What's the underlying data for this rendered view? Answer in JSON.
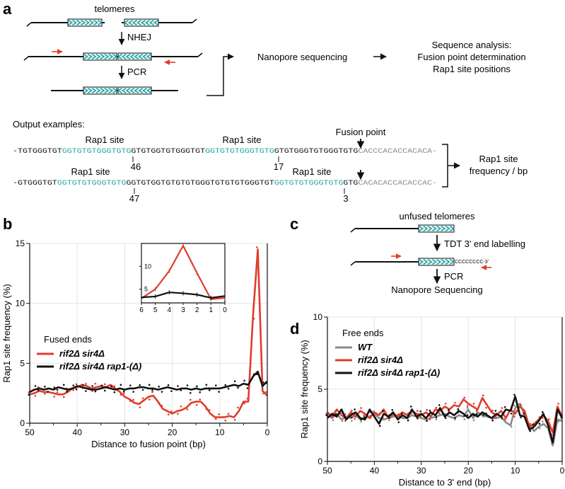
{
  "panel_labels": {
    "a": "a",
    "b": "b",
    "c": "c",
    "d": "d"
  },
  "panel_a": {
    "telomeres": "telomeres",
    "nhej": "NHEJ",
    "pcr": "PCR",
    "nanopore": "Nanopore sequencing",
    "analysis_line1": "Sequence analysis:",
    "analysis_line2": "Fusion point determination",
    "analysis_line3": "Rap1 site positions",
    "output_examples": "Output examples:",
    "rap1_site": "Rap1 site",
    "fusion_point": "Fusion point",
    "freq_line1": "Rap1 site",
    "freq_line2": "frequency / bp",
    "seq1": [
      {
        "t": "-TGTGGGTGT",
        "c": "k"
      },
      {
        "t": "GGTGTGTGGGTGTG",
        "c": "t"
      },
      {
        "t": "GTGTGGTGTGGGTGT",
        "c": "k"
      },
      {
        "t": "GGTGTGTGGGTGTG",
        "c": "t"
      },
      {
        "t": "GTGTGGGTGTGGGTGTG",
        "c": "k"
      },
      {
        "t": "CACCCACACCACACA-",
        "c": "g"
      }
    ],
    "seq2": [
      {
        "t": "-GTGGGTGT",
        "c": "k"
      },
      {
        "t": "GGTGTGTGGGTGTG",
        "c": "t"
      },
      {
        "t": "GGTGTGGTGTGTGTGGGTGTGTGTGGGTGT",
        "c": "k"
      },
      {
        "t": "GGTGTGTGGGTGTG",
        "c": "t"
      },
      {
        "t": "GTG",
        "c": "k"
      },
      {
        "t": "CACACACCACACCAC-",
        "c": "g"
      }
    ],
    "num_46": "46",
    "num_17": "17",
    "num_47": "47",
    "num_3": "3"
  },
  "panel_c": {
    "unfused": "unfused telomeres",
    "tdt": "TDT 3' end labelling",
    "cccc": "CCCCCCCC-3'",
    "pcr": "PCR",
    "nanopore": "Nanopore Sequencing"
  },
  "colors": {
    "teal": "#21a3a3",
    "red": "#e03c2c",
    "gray": "#8a8a8a",
    "black": "#111111"
  },
  "chart_data": [
    {
      "panel": "b",
      "type": "line",
      "xlabel": "Distance to fusion point  (bp)",
      "ylabel": "Rap1 site frequency (%)",
      "xlim": [
        50,
        0
      ],
      "ylim": [
        0,
        15
      ],
      "xticks": [
        50,
        40,
        30,
        20,
        10,
        0
      ],
      "yticks": [
        0,
        5,
        10,
        15
      ],
      "legend_title": "Fused ends",
      "series": [
        {
          "name": "rif2Δ sir4Δ",
          "color": "#e03c2c",
          "values": [
            2.4,
            2.5,
            2.7,
            2.6,
            2.6,
            2.5,
            2.4,
            2.4,
            2.6,
            2.9,
            3.0,
            3.2,
            3.1,
            2.9,
            3.0,
            3.1,
            3.0,
            3.2,
            2.9,
            2.6,
            2.2,
            2.0,
            1.7,
            1.6,
            1.9,
            2.2,
            2.3,
            1.8,
            1.2,
            1.0,
            0.8,
            1.0,
            1.1,
            1.3,
            1.7,
            1.8,
            1.8,
            1.4,
            0.8,
            0.5,
            0.5,
            0.5,
            0.6,
            0.5,
            1.0,
            1.8,
            1.8,
            9.0,
            14.5,
            2.7,
            2.3
          ]
        },
        {
          "name": "rif2Δ sir4Δ rap1-(Δ)",
          "color": "#111111",
          "values": [
            2.6,
            2.8,
            2.9,
            2.8,
            2.9,
            2.8,
            3.0,
            2.9,
            2.8,
            2.9,
            3.1,
            3.0,
            2.9,
            2.8,
            2.8,
            2.9,
            3.0,
            2.9,
            2.8,
            2.9,
            2.8,
            2.9,
            2.9,
            3.0,
            3.0,
            2.9,
            2.9,
            2.8,
            2.9,
            3.0,
            2.9,
            2.8,
            2.9,
            2.9,
            2.8,
            2.9,
            2.8,
            2.9,
            2.9,
            2.9,
            2.9,
            3.0,
            3.1,
            3.2,
            3.1,
            3.3,
            3.2,
            3.9,
            4.3,
            3.1,
            3.5
          ]
        }
      ],
      "inset": {
        "xlim": [
          6,
          0
        ],
        "ylim": [
          2,
          15
        ],
        "xticks": [
          6,
          5,
          4,
          3,
          2,
          1,
          0
        ],
        "yticks": [
          5,
          10
        ],
        "series": [
          {
            "name": "rif2Δ sir4Δ",
            "values": [
              3.0,
              5.0,
              9.0,
              14.5,
              8.5,
              2.8,
              3.1
            ]
          },
          {
            "name": "rif2Δ sir4Δ rap1-(Δ)",
            "values": [
              3.2,
              3.4,
              4.3,
              4.1,
              3.8,
              3.1,
              3.5
            ]
          }
        ]
      }
    },
    {
      "panel": "d",
      "type": "line",
      "xlabel": "Distance to 3' end (bp)",
      "ylabel": "Rap1 site frequency (%)",
      "xlim": [
        50,
        0
      ],
      "ylim": [
        0,
        10
      ],
      "xticks": [
        50,
        40,
        30,
        20,
        10,
        0
      ],
      "yticks": [
        0,
        5,
        10
      ],
      "legend_title": "Free ends",
      "series": [
        {
          "name": "WT",
          "color": "#8a8a8a",
          "values": [
            3.2,
            3.0,
            3.3,
            2.9,
            3.1,
            3.0,
            3.2,
            2.9,
            3.0,
            3.1,
            3.3,
            3.0,
            2.9,
            3.0,
            3.1,
            3.2,
            3.0,
            3.0,
            3.2,
            3.1,
            3.0,
            2.9,
            3.0,
            3.1,
            3.2,
            3.3,
            3.1,
            3.0,
            3.2,
            3.1,
            3.6,
            3.0,
            3.4,
            3.2,
            3.1,
            3.0,
            3.0,
            3.1,
            2.7,
            2.5,
            3.7,
            4.0,
            3.2,
            2.5,
            2.1,
            2.4,
            2.6,
            2.3,
            1.1,
            2.9,
            2.8
          ]
        },
        {
          "name": "rif2Δ sir4Δ",
          "color": "#e03c2c",
          "values": [
            3.4,
            3.1,
            3.6,
            3.2,
            3.0,
            3.4,
            3.1,
            3.5,
            3.3,
            3.0,
            3.4,
            3.2,
            3.6,
            3.0,
            3.3,
            3.1,
            3.4,
            3.2,
            3.5,
            3.3,
            3.2,
            3.4,
            3.1,
            3.6,
            3.5,
            3.8,
            3.6,
            3.9,
            3.8,
            4.3,
            4.0,
            3.8,
            3.6,
            4.4,
            3.9,
            3.4,
            3.2,
            3.5,
            3.0,
            3.6,
            3.3,
            3.8,
            3.5,
            2.4,
            2.6,
            2.9,
            3.2,
            2.8,
            2.0,
            3.8,
            3.1
          ]
        },
        {
          "name": "rif2Δ sir4Δ rap1-(Δ)",
          "color": "#111111",
          "values": [
            3.0,
            3.3,
            3.1,
            3.6,
            2.9,
            3.2,
            3.4,
            3.0,
            2.9,
            3.6,
            3.1,
            2.6,
            3.3,
            3.1,
            3.4,
            2.9,
            3.2,
            3.0,
            3.6,
            3.1,
            3.3,
            3.0,
            3.4,
            3.2,
            3.7,
            3.1,
            3.4,
            3.2,
            3.5,
            3.3,
            3.0,
            3.3,
            3.1,
            3.4,
            3.2,
            3.0,
            3.3,
            3.1,
            3.6,
            3.5,
            4.5,
            3.2,
            3.1,
            2.2,
            2.4,
            2.8,
            3.3,
            2.5,
            1.3,
            3.6,
            3.0
          ]
        }
      ]
    }
  ]
}
